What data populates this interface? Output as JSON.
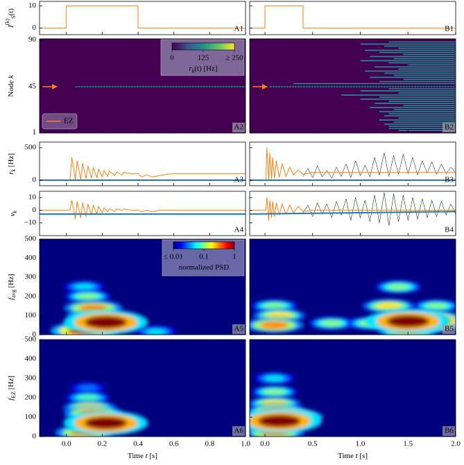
{
  "chart_data": [
    {
      "type": "line",
      "label": "A1",
      "ylabel": [
        {
          "text": "I",
          "italic": true
        },
        {
          "text": "(k)",
          "sup": true
        },
        {
          "text": "S",
          "sub": true
        },
        {
          "text": "(t)"
        }
      ],
      "xlim": [
        -0.15,
        1.0
      ],
      "ylim": [
        -3,
        12
      ],
      "yticks": [
        0,
        10
      ],
      "series": [
        {
          "color": "#ff7f0e",
          "x": [
            -0.15,
            0,
            0,
            0.4,
            0.4,
            1.0
          ],
          "values": [
            0,
            0,
            10,
            10,
            0,
            0
          ]
        }
      ]
    },
    {
      "type": "raster",
      "label": "A2",
      "ylabel": [
        {
          "text": "Node "
        },
        {
          "text": "k",
          "italic": true
        }
      ],
      "xlim": [
        -0.15,
        1.0
      ],
      "ylim": [
        0.5,
        91
      ],
      "yticks": [
        1,
        45,
        90
      ],
      "background": "#440154",
      "segment_color": "#21918c",
      "segments": {
        "nodes": [
          45
        ],
        "starts": [
          0.05
        ]
      },
      "legend": {
        "name": "EZ",
        "color": "#ff7f0e",
        "loc": "lower left"
      },
      "colorbar": {
        "lim": [
          0,
          250
        ],
        "ticks": [
          0,
          125,
          {
            "value": 250,
            "label": "≥ 250"
          }
        ],
        "label": [
          {
            "text": "r",
            "italic": true
          },
          {
            "text": "k",
            "sub": true,
            "italic": true
          },
          {
            "text": "(t) [Hz]"
          }
        ]
      }
    },
    {
      "type": "line",
      "label": "A3",
      "ylabel": [
        {
          "text": "r",
          "italic": true
        },
        {
          "text": "k",
          "sub": true,
          "italic": true
        },
        {
          "text": " [Hz]"
        }
      ],
      "xlim": [
        -0.15,
        1.0
      ],
      "ylim": [
        -85,
        585
      ],
      "yticks": [
        0,
        500
      ],
      "series": [
        {
          "color": "#ff7f0e",
          "x": [
            -0.15,
            0.02,
            0.03,
            0.05,
            0.06,
            0.08,
            0.09,
            0.11,
            0.12,
            0.14,
            0.15,
            0.17,
            0.18,
            0.2,
            0.21,
            0.23,
            0.24,
            0.27,
            0.28,
            0.31,
            0.32,
            0.36,
            0.4,
            0.42,
            0.45,
            0.48,
            0.52,
            0.56,
            0.6,
            1.0
          ],
          "values": [
            0,
            0,
            350,
            0,
            300,
            10,
            260,
            20,
            220,
            30,
            190,
            40,
            170,
            50,
            150,
            60,
            140,
            70,
            130,
            80,
            120,
            100,
            100,
            50,
            80,
            50,
            70,
            90,
            100,
            100
          ]
        },
        {
          "color": "#1f77b4",
          "x": [
            -0.15,
            1.0
          ],
          "values": [
            0,
            0
          ]
        }
      ]
    },
    {
      "type": "line",
      "label": "A4",
      "ylabel": [
        {
          "text": "v",
          "italic": true
        },
        {
          "text": "k",
          "sub": true,
          "italic": true
        }
      ],
      "xlim": [
        -0.15,
        1.0
      ],
      "ylim": [
        -20,
        15
      ],
      "yticks": [
        {
          "value": -10,
          "label": "−10"
        },
        0,
        10
      ],
      "series": [
        {
          "color": "#ff7f0e",
          "x": [
            -0.15,
            0.02,
            0.03,
            0.05,
            0.06,
            0.08,
            0.09,
            0.11,
            0.12,
            0.14,
            0.15,
            0.17,
            0.18,
            0.2,
            0.21,
            0.23,
            0.24,
            0.27,
            0.28,
            0.31,
            0.32,
            0.36,
            0.4,
            0.42,
            0.45,
            0.48,
            0.52,
            0.56,
            0.6,
            1.0
          ],
          "values": [
            0,
            0,
            8,
            -7,
            7,
            -6,
            6,
            -5,
            5,
            -4,
            4,
            -3,
            3,
            -2,
            2,
            -1,
            1,
            -1,
            1,
            0,
            1,
            0,
            0,
            -1,
            0,
            -1,
            0,
            0,
            0,
            0
          ]
        },
        {
          "color": "#1f77b4",
          "x": [
            -0.15,
            1.0
          ],
          "values": [
            -3,
            -3
          ]
        }
      ]
    },
    {
      "type": "spectrogram",
      "label": "A5",
      "ylabel_color": "#1f77b4",
      "ylabel": [
        {
          "text": "f",
          "italic": true
        },
        {
          "text": "avg",
          "sub": true
        },
        {
          "text": " [Hz]"
        }
      ],
      "xlim": [
        -0.15,
        1.0
      ],
      "ylim": [
        0,
        500
      ],
      "yticks": [
        0,
        100,
        200,
        300,
        400,
        500
      ],
      "background": "#00007f",
      "blobs": {
        "x": [
          0.5,
          0.1,
          0.12,
          0.15,
          0.15,
          0.1,
          0.22
        ],
        "y": [
          15,
          250,
          200,
          100,
          140,
          20,
          65
        ],
        "z": [
          0.05,
          0.05,
          0.1,
          0.2,
          0.3,
          0.5,
          1
        ]
      },
      "colorbar": {
        "lim": [
          0.01,
          1
        ],
        "log": true,
        "ticks": [
          {
            "value": 0.01,
            "label": "≤ 0.01"
          },
          0.1,
          1
        ],
        "label": [
          {
            "text": "normalized PSD"
          }
        ]
      }
    },
    {
      "type": "spectrogram",
      "label": "A6",
      "ylabel_color": "#ff7f0e",
      "ylabel": [
        {
          "text": "f",
          "italic": true
        },
        {
          "text": "EZ",
          "sub": true
        },
        {
          "text": " [Hz]"
        }
      ],
      "xlim": [
        -0.15,
        1.0
      ],
      "ylim": [
        0,
        500
      ],
      "yticks": [
        0,
        100,
        200,
        300,
        400,
        500
      ],
      "background": "#00007f",
      "blobs": {
        "x": [
          0.12,
          0.12,
          0.13,
          0.1,
          0.15,
          0.22
        ],
        "y": [
          250,
          200,
          150,
          20,
          120,
          70
        ],
        "z": [
          0.03,
          0.08,
          0.2,
          0.3,
          0.3,
          1
        ]
      },
      "xticks": [
        {
          "value": 0,
          "label": "0.0"
        },
        0.2,
        0.4,
        0.6,
        0.8,
        {
          "value": 1,
          "label": "1.0"
        }
      ],
      "xlabel": [
        {
          "text": "Time "
        },
        {
          "text": "t",
          "italic": true
        },
        {
          "text": " [s]"
        }
      ]
    },
    {
      "type": "line",
      "label": "B1",
      "xlim": [
        -0.16,
        2.0
      ],
      "ylim": [
        -3,
        12
      ],
      "series": [
        {
          "color": "#ff7f0e",
          "x": [
            -0.16,
            0,
            0,
            0.4,
            0.4,
            2.0
          ],
          "values": [
            0,
            0,
            10,
            10,
            0,
            0
          ]
        }
      ]
    },
    {
      "type": "raster",
      "label": "B2",
      "xlim": [
        -0.16,
        2.0
      ],
      "ylim": [
        0.5,
        91
      ],
      "background": "#440154",
      "segment_color": "#21918c",
      "segments": {
        "nodes": [
          45,
          88,
          86,
          84,
          82,
          80,
          78,
          76,
          74,
          72,
          70,
          68,
          66,
          64,
          62,
          60,
          58,
          56,
          54,
          52,
          50,
          48,
          43,
          41,
          39,
          37,
          35,
          33,
          31,
          29,
          27,
          25,
          23,
          21,
          19,
          17,
          15,
          13,
          11,
          9,
          7,
          5,
          3
        ],
        "starts": [
          0.05,
          1.3,
          1.0,
          1.25,
          1.4,
          1.05,
          1.2,
          1.45,
          1.1,
          1.35,
          1.0,
          1.3,
          1.5,
          1.15,
          1.4,
          1.05,
          1.25,
          1.35,
          1.1,
          1.45,
          1.2,
          0.3,
          1.3,
          1.0,
          1.4,
          0.8,
          1.2,
          1.0,
          1.3,
          1.15,
          1.45,
          1.1,
          1.35,
          1.2,
          1.3,
          1.25,
          1.4,
          1.2,
          1.35,
          1.25,
          1.3,
          1.3,
          1.4
        ]
      }
    },
    {
      "type": "line",
      "label": "B3",
      "xlim": [
        -0.16,
        2.0
      ],
      "ylim": [
        -85,
        585
      ],
      "series": [
        {
          "color": "#000000",
          "x": [
            0.4,
            0.45,
            0.5,
            0.55,
            0.6,
            0.65,
            0.7,
            0.75,
            0.8,
            0.85,
            0.9,
            0.95,
            1.0,
            1.05,
            1.1,
            1.15,
            1.2,
            1.25,
            1.3,
            1.35,
            1.4,
            1.45,
            1.5,
            1.55,
            1.6,
            1.65,
            1.7,
            1.75,
            1.8,
            1.85,
            1.9,
            1.95,
            2.0
          ],
          "values": [
            60,
            180,
            40,
            220,
            50,
            150,
            30,
            200,
            60,
            250,
            40,
            300,
            70,
            230,
            50,
            350,
            80,
            420,
            60,
            380,
            90,
            400,
            100,
            350,
            80,
            300,
            110,
            280,
            90,
            250,
            100,
            200,
            110
          ]
        },
        {
          "color": "#ff7f0e",
          "x": [
            -0.16,
            0.01,
            0.02,
            0.04,
            0.05,
            0.07,
            0.08,
            0.1,
            0.12,
            0.15,
            0.18,
            0.22,
            0.26,
            0.3,
            0.35,
            0.4,
            0.5,
            2.0
          ],
          "values": [
            0,
            0,
            500,
            0,
            420,
            20,
            350,
            30,
            300,
            40,
            250,
            60,
            200,
            80,
            160,
            90,
            120,
            120
          ]
        },
        {
          "color": "#1f77b4",
          "x": [
            -0.16,
            2.0
          ],
          "values": [
            0,
            0
          ]
        }
      ]
    },
    {
      "type": "line",
      "label": "B4",
      "xlim": [
        -0.16,
        2.0
      ],
      "ylim": [
        -20,
        15
      ],
      "series": [
        {
          "color": "#000000",
          "x": [
            0.4,
            0.45,
            0.5,
            0.55,
            0.6,
            0.65,
            0.7,
            0.75,
            0.8,
            0.85,
            0.9,
            0.95,
            1.0,
            1.05,
            1.1,
            1.15,
            1.2,
            1.25,
            1.3,
            1.35,
            1.4,
            1.45,
            1.5,
            1.55,
            1.6,
            1.65,
            1.7,
            1.75,
            1.8,
            1.85,
            1.9,
            1.95,
            2.0
          ],
          "values": [
            -2,
            4,
            -5,
            6,
            -3,
            5,
            -6,
            7,
            -4,
            9,
            -8,
            10,
            -6,
            8,
            -9,
            12,
            -10,
            14,
            -12,
            13,
            -9,
            12,
            -8,
            10,
            -7,
            9,
            -6,
            8,
            -5,
            7,
            -4,
            5,
            -3
          ]
        },
        {
          "color": "#ff7f0e",
          "x": [
            -0.16,
            0.01,
            0.02,
            0.04,
            0.05,
            0.07,
            0.08,
            0.1,
            0.12,
            0.15,
            0.18,
            0.22,
            0.26,
            0.3,
            0.35,
            0.4,
            0.5,
            2.0
          ],
          "values": [
            0,
            0,
            10,
            -8,
            8,
            -6,
            7,
            -5,
            6,
            -4,
            5,
            -3,
            4,
            -2,
            3,
            -1,
            0,
            0
          ]
        },
        {
          "color": "#1f77b4",
          "x": [
            -0.16,
            2.0
          ],
          "values": [
            -3,
            -1
          ]
        }
      ]
    },
    {
      "type": "spectrogram",
      "label": "B5",
      "xlim": [
        -0.16,
        2.0
      ],
      "ylim": [
        0,
        500
      ],
      "background": "#00007f",
      "blobs": {
        "x": [
          0.7,
          1.1,
          1.8,
          1.4,
          0.1,
          0.15,
          1.3,
          0.1,
          1.5,
          1.7,
          1.5
        ],
        "y": [
          60,
          60,
          150,
          250,
          150,
          100,
          150,
          50,
          20,
          70,
          70
        ],
        "z": [
          0.1,
          0.1,
          0.1,
          0.1,
          0.1,
          0.2,
          0.2,
          0.3,
          0.3,
          0.8,
          1
        ]
      }
    },
    {
      "type": "spectrogram",
      "label": "B6",
      "xlim": [
        -0.16,
        2.0
      ],
      "ylim": [
        0,
        500
      ],
      "background": "#00007f",
      "blobs": {
        "x": [
          0.1,
          0.1,
          0.1,
          0.1,
          0.12,
          0.25,
          0.15
        ],
        "y": [
          300,
          230,
          170,
          20,
          130,
          100,
          80
        ],
        "z": [
          0.05,
          0.1,
          0.2,
          0.3,
          0.3,
          0.5,
          1
        ]
      },
      "xticks": [
        {
          "value": 0,
          "label": "0.0"
        },
        0.5,
        {
          "value": 1,
          "label": "1.0"
        },
        1.5,
        {
          "value": 2,
          "label": "2.0"
        }
      ],
      "xlabel": [
        {
          "text": "Time "
        },
        {
          "text": "t",
          "italic": true
        },
        {
          "text": " [s]"
        }
      ]
    }
  ]
}
